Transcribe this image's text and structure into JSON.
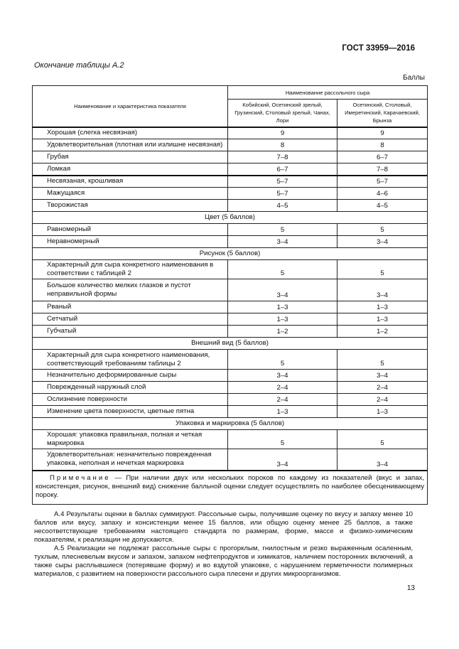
{
  "header": "ГОСТ 33959—2016",
  "caption": "Окончание таблицы А.2",
  "units": "Баллы",
  "table": {
    "col_indicator": "Наименование и характеристика показателя",
    "col_group": "Наименование рассольного сыра",
    "col_a": "Кобийский, Осетинский зрелый, Грузинский, Столовый зрелый, Чанах, Лори",
    "col_b": "Осетинский, Столовый, Имеретинский, Карачаевский, Брынза",
    "rows": [
      {
        "t": "r",
        "name": "Хорошая (слегка несвязная)",
        "a": "9",
        "b": "9"
      },
      {
        "t": "r",
        "name": "Удовлетворительная (плотная или излишне несвязная)",
        "a": "8",
        "b": "8"
      },
      {
        "t": "r",
        "name": "Грубая",
        "a": "7–8",
        "b": "6–7"
      },
      {
        "t": "r",
        "name": "Ломкая",
        "a": "6–7",
        "b": "7–8"
      },
      {
        "t": "r",
        "name": "Несвязаная, крошливая",
        "a": "5–7",
        "b": "5–7",
        "thick": true
      },
      {
        "t": "r",
        "name": "Мажущаяся",
        "a": "5–7",
        "b": "4–6"
      },
      {
        "t": "r",
        "name": "Творожистая",
        "a": "4–5",
        "b": "4–5"
      },
      {
        "t": "s",
        "name": "Цвет (5 баллов)"
      },
      {
        "t": "r",
        "name": "Равномерный",
        "a": "5",
        "b": "5"
      },
      {
        "t": "r",
        "name": "Неравномерный",
        "a": "3–4",
        "b": "3–4"
      },
      {
        "t": "s",
        "name": "Рисунок (5 баллов)"
      },
      {
        "t": "r",
        "name": "Характерный для сыра конкретного наименования в соответствии с таблицей 2",
        "a": "5",
        "b": "5",
        "h": 26
      },
      {
        "t": "r",
        "name": "Большое количество мелких глазков и пустот неправильной формы",
        "a": "3–4",
        "b": "3–4",
        "h": 31
      },
      {
        "t": "r",
        "name": "Рваный",
        "a": "1–3",
        "b": "1–3"
      },
      {
        "t": "r",
        "name": "Сетчатый",
        "a": "1–3",
        "b": "1–3"
      },
      {
        "t": "r",
        "name": "Губчатый",
        "a": "1–2",
        "b": "1–2"
      },
      {
        "t": "s",
        "name": "Внешний вид (5 баллов)"
      },
      {
        "t": "r",
        "name": "Характерный для сыра конкретного наименования, соответствующий требованиям таблицы 2",
        "a": "5",
        "b": "5",
        "h": 28
      },
      {
        "t": "r",
        "name": "Незначительно деформированные сыры",
        "a": "3–4",
        "b": "3–4"
      },
      {
        "t": "r",
        "name": "Поврежденный наружный слой",
        "a": "2–4",
        "b": "2–4"
      },
      {
        "t": "r",
        "name": "Ослизнение поверхности",
        "a": "2–4",
        "b": "2–4"
      },
      {
        "t": "r",
        "name": "Изменение цвета поверхности, цветные пятна",
        "a": "1–3",
        "b": "1–3"
      },
      {
        "t": "s",
        "name": "Упаковка и маркировка (5 баллов)"
      },
      {
        "t": "r",
        "name": "Хорошая: упаковка правильная, полная и четкая маркировка",
        "a": "5",
        "b": "5",
        "h": 27
      },
      {
        "t": "r",
        "name": "Удовлетворительная: незначительно поврежденная упаковка, неполная и нечеткая маркировка",
        "a": "3–4",
        "b": "3–4",
        "h": 30
      }
    ],
    "note_label": "Примечание",
    "note_text": " — При наличии двух или нескольких пороков по каждому из показателей (вкус и запах, консистенция, рисунок, внешний вид) снижение балльной оценки следует осуществлять по наиболее обесценивающему пороку."
  },
  "paragraphs": [
    "А.4 Результаты оценки в баллах суммируют. Рассольные сыры, получившие оценку по вкусу и запаху менее 10 баллов или вкусу, запаху и консистенции менее 15 баллов, или общую оценку менее 25 баллов, а также несоответствующие требованиям настоящего стандарта по размерам, форме, массе и физико-химическим показателям, к реализации не допускаются.",
    "А.5 Реализации не подлежат рассольные сыры с прогорклым, гнилостным и резко выраженным осаленным, тухлым, плесневелым вкусом и запахом, запахом нефтепродуктов и химикатов, наличием посторонних включений, а также сыры расплывшиеся (потерявшие форму) и во вздутой упаковке, с нарушением герметичности полимерных материалов, с развитием на поверхности рассольного сыра плесени и других микроорганизмов."
  ],
  "page_number": "13"
}
